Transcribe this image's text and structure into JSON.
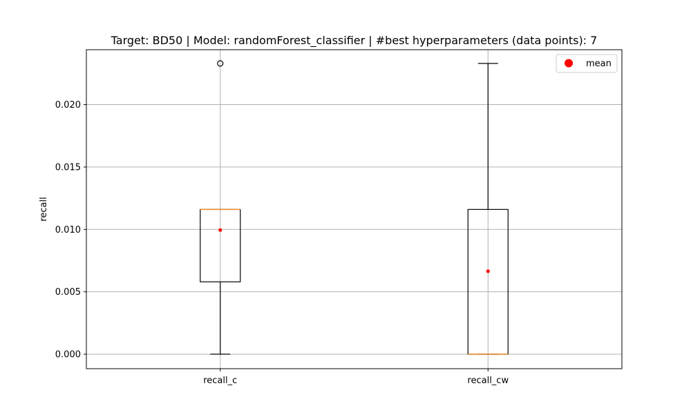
{
  "chart_data": {
    "type": "box",
    "title": "Target: BD50 | Model: randomForest_classifier | #best hyperparameters (data points): 7",
    "xlabel": "",
    "ylabel": "recall",
    "ylim": [
      -0.00116,
      0.0244
    ],
    "y_ticks": [
      0.0,
      0.005,
      0.01,
      0.015,
      0.02
    ],
    "y_tick_labels": [
      "0.000",
      "0.005",
      "0.010",
      "0.015",
      "0.020"
    ],
    "grid": true,
    "legend": {
      "placement": "top-right",
      "entries": [
        {
          "label": "mean",
          "marker": "circle",
          "color": "#ff0000"
        }
      ]
    },
    "categories": [
      "recall_c",
      "recall_cw"
    ],
    "boxes": [
      {
        "category": "recall_c",
        "whisker_low": 0.0,
        "q1": 0.0058,
        "median": 0.0116,
        "q3": 0.0116,
        "whisker_high": 0.0116,
        "mean": 0.00995,
        "outliers": [
          0.0233
        ]
      },
      {
        "category": "recall_cw",
        "whisker_low": 0.0,
        "q1": 0.0,
        "median": 0.0,
        "q3": 0.0116,
        "whisker_high": 0.0233,
        "mean": 0.00665,
        "outliers": []
      }
    ],
    "colors": {
      "box": "#000000",
      "median": "#f28e2b",
      "mean": "#ff0000",
      "grid": "#b0b0b0"
    }
  }
}
